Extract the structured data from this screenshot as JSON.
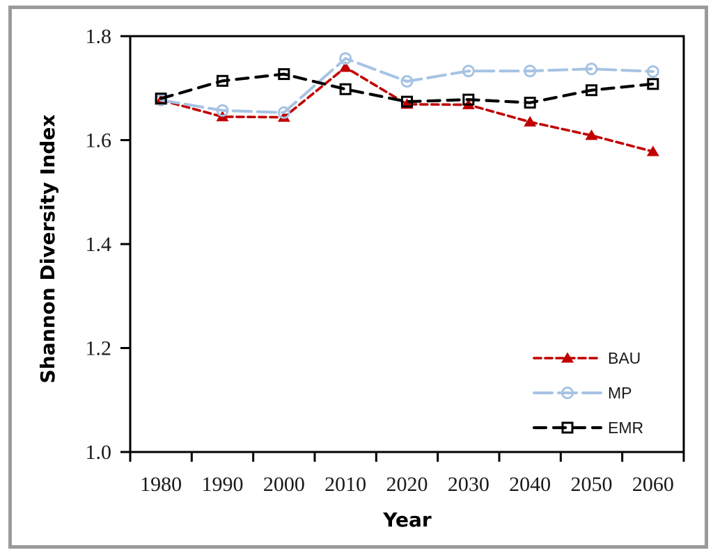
{
  "chart_data": {
    "type": "line",
    "title": "",
    "xlabel": "Year",
    "ylabel": "Shannon Diversity Index",
    "categories": [
      "1980",
      "1990",
      "2000",
      "2010",
      "2020",
      "2030",
      "2040",
      "2050",
      "2060"
    ],
    "ylim": [
      1.0,
      1.8
    ],
    "yticks": [
      1.0,
      1.2,
      1.4,
      1.6,
      1.8
    ],
    "ytick_labels": [
      "1.0",
      "1.2",
      "1.4",
      "1.6",
      "1.8"
    ],
    "grid": false,
    "legend_position": "inside-bottom-right",
    "series": [
      {
        "name": "BAU",
        "color": "#C00000",
        "marker": "triangle-filled",
        "line_style": "short-dash",
        "values": [
          1.677,
          1.645,
          1.644,
          1.74,
          1.669,
          1.668,
          1.635,
          1.609,
          1.578
        ]
      },
      {
        "name": "MP",
        "color": "#A6C3E3",
        "marker": "circle-open",
        "line_style": "long-dash",
        "values": [
          1.677,
          1.657,
          1.653,
          1.757,
          1.713,
          1.733,
          1.733,
          1.737,
          1.732
        ]
      },
      {
        "name": "EMR",
        "color": "#000000",
        "marker": "square-open",
        "line_style": "medium-dash",
        "values": [
          1.68,
          1.714,
          1.727,
          1.698,
          1.674,
          1.678,
          1.672,
          1.696,
          1.708
        ]
      }
    ]
  }
}
